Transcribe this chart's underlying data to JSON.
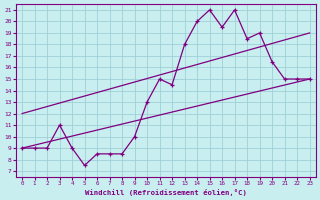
{
  "xlabel": "Windchill (Refroidissement éolien,°C)",
  "ylabel": "",
  "bg_color": "#c8eef0",
  "line_color": "#800080",
  "grid_color": "#a0d0d8",
  "x_ticks": [
    0,
    1,
    2,
    3,
    4,
    5,
    6,
    7,
    8,
    9,
    10,
    11,
    12,
    13,
    14,
    15,
    16,
    17,
    18,
    19,
    20,
    21,
    22,
    23
  ],
  "y_ticks": [
    7,
    8,
    9,
    10,
    11,
    12,
    13,
    14,
    15,
    16,
    17,
    18,
    19,
    20,
    21
  ],
  "ylim": [
    6.5,
    21.5
  ],
  "xlim": [
    -0.5,
    23.5
  ],
  "line1_x": [
    0,
    1,
    2,
    3,
    4,
    5,
    6,
    7,
    8,
    9,
    10,
    11,
    12,
    13,
    14,
    15,
    16,
    17,
    18,
    19,
    20,
    21,
    22,
    23
  ],
  "line1_y": [
    9,
    9,
    9,
    11,
    9,
    7.5,
    8.5,
    8.5,
    8.5,
    10,
    13,
    15,
    14.5,
    18,
    20,
    21,
    19.5,
    21,
    18.5,
    19,
    16.5,
    15,
    15,
    15
  ],
  "line2_x": [
    0,
    23
  ],
  "line2_y": [
    9,
    15
  ],
  "line3_x": [
    0,
    23
  ],
  "line3_y": [
    12,
    19
  ],
  "figsize": [
    3.2,
    2.0
  ],
  "dpi": 100
}
